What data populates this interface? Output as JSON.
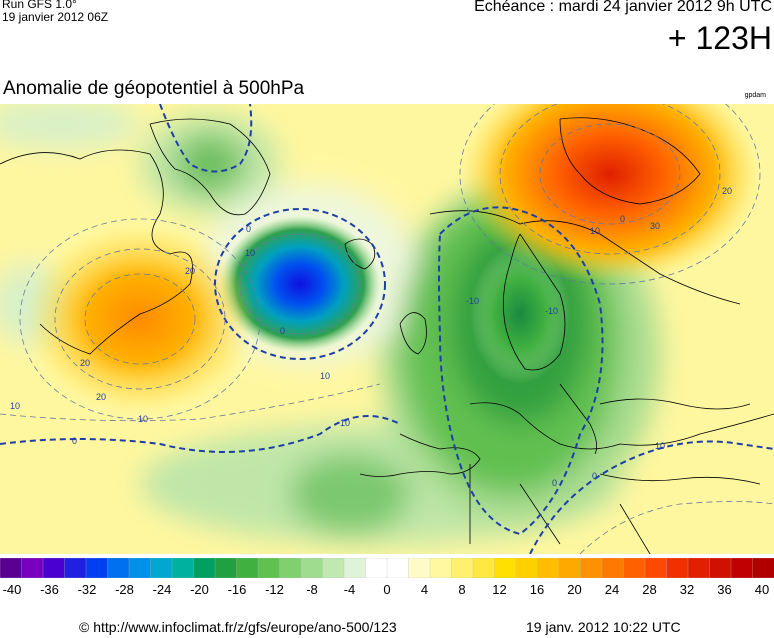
{
  "header": {
    "run": "Run GFS 1.0°",
    "run_date": "19 janvier 2012 06Z",
    "echeance": "Echéance : mardi 24 janvier 2012 9h UTC",
    "lead": "+ 123H"
  },
  "title": "Anomalie de géopotentiel à 500hPa",
  "brand": "gpdam",
  "colorbar": {
    "ticks": [
      "-40",
      "-36",
      "-32",
      "-28",
      "-24",
      "-20",
      "-16",
      "-12",
      "-8",
      "-4",
      "0",
      "4",
      "8",
      "12",
      "16",
      "20",
      "24",
      "28",
      "32",
      "36",
      "40"
    ],
    "colors": [
      "#5a0090",
      "#7a00c0",
      "#4a00d0",
      "#2020e0",
      "#0040f0",
      "#0070f0",
      "#0090e8",
      "#00a8d0",
      "#00b0a0",
      "#00a060",
      "#20a040",
      "#40b040",
      "#60c050",
      "#80d070",
      "#a0dc90",
      "#c0e8b0",
      "#dff3d6",
      "#ffffff",
      "#ffffff",
      "#fffbc8",
      "#fff8a0",
      "#fff070",
      "#ffe840",
      "#ffe000",
      "#ffd000",
      "#ffbc00",
      "#ffa800",
      "#ff9000",
      "#ff7800",
      "#ff6000",
      "#ff4800",
      "#f03000",
      "#e02000",
      "#d01000",
      "#c00000",
      "#b00000"
    ]
  },
  "contour_labels": [
    "20",
    "10",
    "-10",
    "0",
    "10",
    "20",
    "30",
    "20",
    "10",
    "0",
    "-10",
    "0",
    "10",
    "20",
    "10",
    "10",
    "0",
    "0",
    "10",
    "0"
  ],
  "footer": {
    "url": "© http://www.infoclimat.fr/z/gfs/europe/ano-500/123",
    "timestamp": "19 janv. 2012 10:22 UTC"
  },
  "colors": {
    "contour_zero": "#1f3fa8",
    "contour_other": "#6a7a9a",
    "coast": "#000000"
  }
}
